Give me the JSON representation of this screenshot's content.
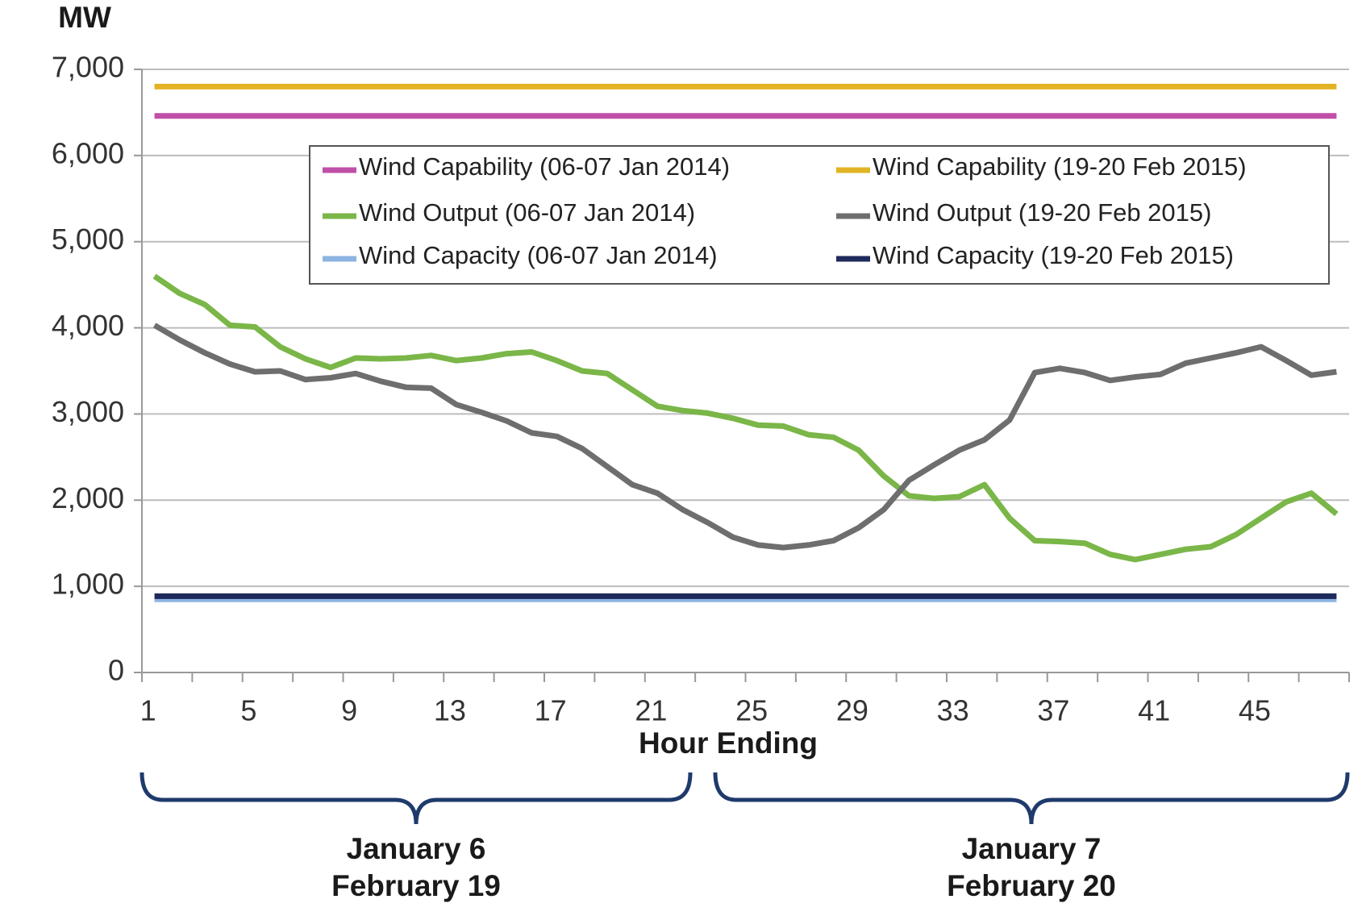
{
  "chart_data": {
    "type": "line",
    "y_label": "MW",
    "x_label": "Hour Ending",
    "categories": [
      "1",
      null,
      null,
      null,
      "5",
      null,
      null,
      null,
      "9",
      null,
      null,
      null,
      "13",
      null,
      null,
      null,
      "17",
      null,
      null,
      null,
      "21",
      null,
      null,
      null,
      "25",
      null,
      null,
      null,
      "29",
      null,
      null,
      null,
      "33",
      null,
      null,
      null,
      "37",
      null,
      null,
      null,
      "41",
      null,
      null,
      null,
      "45",
      null,
      null,
      null
    ],
    "ylim": [
      0,
      7000
    ],
    "yticks": [
      0,
      {
        "value": 1000,
        "label": "1,000"
      },
      {
        "value": 2000,
        "label": "2,000"
      },
      {
        "value": 3000,
        "label": "3,000"
      },
      {
        "value": 4000,
        "label": "4,000"
      },
      {
        "value": 5000,
        "label": "5,000"
      },
      {
        "value": 6000,
        "label": "6,000"
      },
      {
        "value": 7000,
        "label": "7,000"
      }
    ],
    "grid": true,
    "legend_position": "top",
    "series": [
      {
        "name": "Wind Capability (06-07 Jan 2014)",
        "color": "#c04fa8",
        "values": [
          6460,
          6460,
          6460,
          6460,
          6460,
          6460,
          6460,
          6460,
          6460,
          6460,
          6460,
          6460,
          6460,
          6460,
          6460,
          6460,
          6460,
          6460,
          6460,
          6460,
          6460,
          6460,
          6460,
          6460,
          6460,
          6460,
          6460,
          6460,
          6460,
          6460,
          6460,
          6460,
          6460,
          6460,
          6460,
          6460,
          6460,
          6460,
          6460,
          6460,
          6460,
          6460,
          6460,
          6460,
          6460,
          6460,
          6460,
          6460
        ]
      },
      {
        "name": "Wind Capability (19-20 Feb 2015)",
        "color": "#e2b324",
        "values": [
          6800,
          6800,
          6800,
          6800,
          6800,
          6800,
          6800,
          6800,
          6800,
          6800,
          6800,
          6800,
          6800,
          6800,
          6800,
          6800,
          6800,
          6800,
          6800,
          6800,
          6800,
          6800,
          6800,
          6800,
          6800,
          6800,
          6800,
          6800,
          6800,
          6800,
          6800,
          6800,
          6800,
          6800,
          6800,
          6800,
          6800,
          6800,
          6800,
          6800,
          6800,
          6800,
          6800,
          6800,
          6800,
          6800,
          6800,
          6800
        ]
      },
      {
        "name": "Wind Output (06-07 Jan 2014)",
        "color": "#7ab648",
        "values": [
          4600,
          4400,
          4270,
          4030,
          4010,
          3780,
          3640,
          3540,
          3650,
          3640,
          3650,
          3680,
          3620,
          3650,
          3700,
          3720,
          3620,
          3500,
          3470,
          3280,
          3090,
          3040,
          3010,
          2950,
          2870,
          2860,
          2760,
          2730,
          2580,
          2280,
          2050,
          2020,
          2040,
          2180,
          1790,
          1530,
          1520,
          1500,
          1370,
          1310,
          1370,
          1430,
          1460,
          1600,
          1790,
          1980,
          2080,
          1840
        ]
      },
      {
        "name": "Wind Output (19-20 Feb 2015)",
        "color": "#6e6e6e",
        "values": [
          4030,
          3860,
          3710,
          3580,
          3490,
          3500,
          3400,
          3420,
          3470,
          3380,
          3310,
          3300,
          3110,
          3020,
          2920,
          2780,
          2740,
          2600,
          2390,
          2180,
          2080,
          1890,
          1740,
          1570,
          1480,
          1450,
          1480,
          1530,
          1680,
          1890,
          2230,
          2410,
          2580,
          2700,
          2930,
          3480,
          3530,
          3480,
          3390,
          3430,
          3460,
          3590,
          3650,
          3710,
          3780,
          3620,
          3450,
          3490
        ]
      },
      {
        "name": "Wind Capacity (06-07 Jan 2014)",
        "color": "#8db4e2",
        "values": [
          850,
          850,
          850,
          850,
          850,
          850,
          850,
          850,
          850,
          850,
          850,
          850,
          850,
          850,
          850,
          850,
          850,
          850,
          850,
          850,
          850,
          850,
          850,
          850,
          850,
          850,
          850,
          850,
          850,
          850,
          850,
          850,
          850,
          850,
          850,
          850,
          850,
          850,
          850,
          850,
          850,
          850,
          850,
          850,
          850,
          850,
          850,
          850
        ]
      },
      {
        "name": "Wind Capacity (19-20 Feb 2015)",
        "color": "#1f2a5c",
        "values": [
          885,
          885,
          885,
          885,
          885,
          885,
          885,
          885,
          885,
          885,
          885,
          885,
          885,
          885,
          885,
          885,
          885,
          885,
          885,
          885,
          885,
          885,
          885,
          885,
          885,
          885,
          885,
          885,
          885,
          885,
          885,
          885,
          885,
          885,
          885,
          885,
          885,
          885,
          885,
          885,
          885,
          885,
          885,
          885,
          885,
          885,
          885,
          885
        ]
      }
    ],
    "annotations": [
      {
        "lines": [
          "January 6",
          "February 19"
        ]
      },
      {
        "lines": [
          "January 7",
          "February 20"
        ]
      }
    ]
  }
}
